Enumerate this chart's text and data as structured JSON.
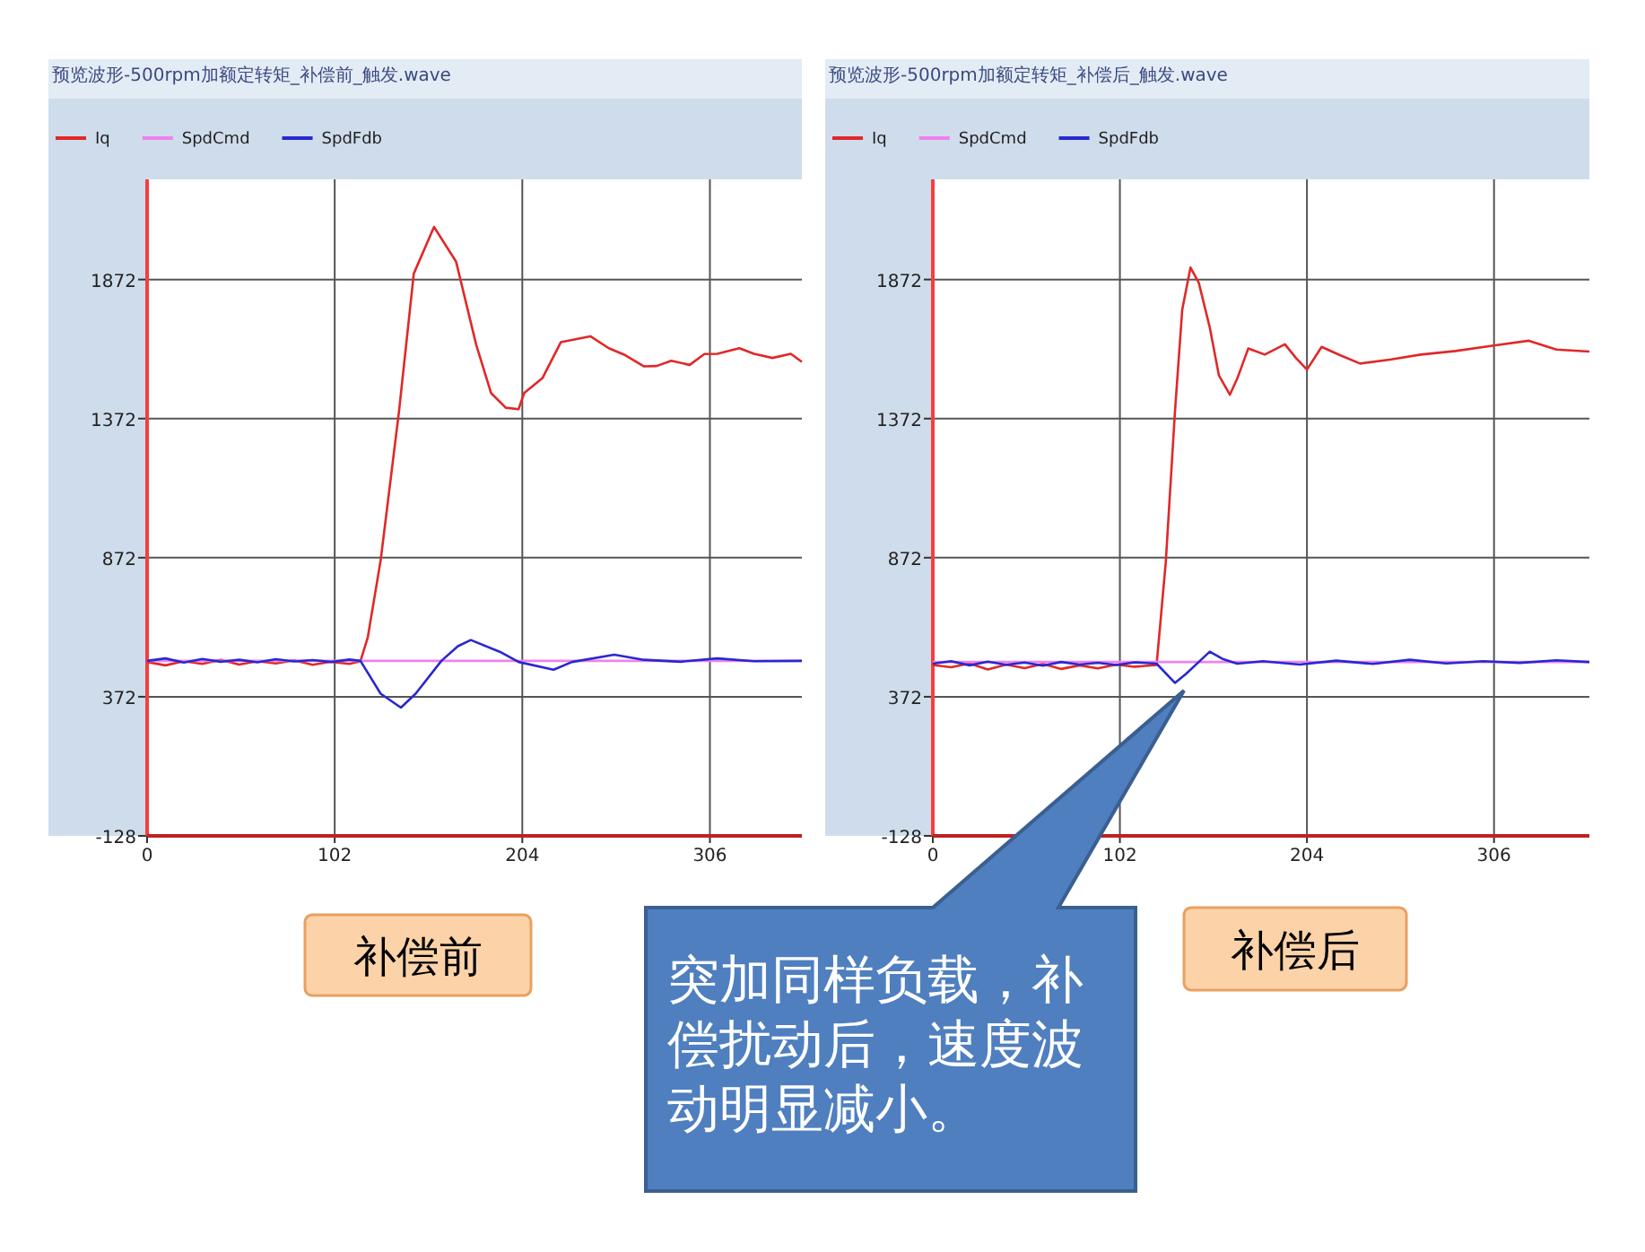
{
  "chart_data": [
    {
      "type": "line",
      "title": "预览波形-500rpm加额定转矩_补偿前_触发.wave",
      "xlim": [
        0,
        356
      ],
      "ylim": [
        -128,
        2232
      ],
      "xticks": [
        0,
        102,
        204,
        306
      ],
      "yticks": [
        -128,
        372,
        872,
        1372,
        1872
      ],
      "grid": true,
      "legend": "top left",
      "annotations": [
        "补偿前"
      ],
      "series": [
        {
          "name": "Iq",
          "color": "#e02828",
          "x": [
            0,
            10,
            20,
            30,
            40,
            50,
            60,
            70,
            80,
            90,
            100,
            110,
            116,
            120,
            127,
            137,
            145,
            156,
            168,
            179,
            187,
            195,
            202,
            205,
            215,
            225,
            241,
            251,
            260,
            270,
            277,
            285,
            295,
            303,
            310,
            322,
            330,
            340,
            350,
            356
          ],
          "values": [
            497,
            485,
            500,
            490,
            505,
            488,
            500,
            492,
            503,
            487,
            498,
            490,
            500,
            586,
            863,
            1400,
            1893,
            2061,
            1936,
            1636,
            1464,
            1411,
            1406,
            1464,
            1518,
            1647,
            1668,
            1625,
            1600,
            1560,
            1561,
            1580,
            1565,
            1604,
            1605,
            1625,
            1605,
            1590,
            1605,
            1576
          ]
        },
        {
          "name": "SpdCmd",
          "color": "#ee82ee",
          "x": [
            0,
            356
          ],
          "values": [
            501,
            501
          ]
        },
        {
          "name": "SpdFdb",
          "color": "#2828d0",
          "x": [
            0,
            10,
            20,
            30,
            40,
            50,
            60,
            70,
            80,
            90,
            100,
            110,
            116,
            127,
            138,
            146,
            160,
            169,
            176,
            192,
            202,
            221,
            231,
            254,
            270,
            290,
            310,
            330,
            356
          ],
          "values": [
            501,
            510,
            495,
            508,
            498,
            505,
            496,
            507,
            499,
            504,
            497,
            506,
            501,
            383,
            333,
            383,
            501,
            554,
            576,
            533,
            497,
            469,
            497,
            523,
            505,
            498,
            510,
            500,
            501
          ]
        }
      ]
    },
    {
      "type": "line",
      "title": "预览波形-500rpm加额定转矩_补偿后_触发.wave",
      "xlim": [
        0,
        358
      ],
      "ylim": [
        -128,
        2232
      ],
      "xticks": [
        0,
        102,
        204,
        306
      ],
      "yticks": [
        -128,
        372,
        872,
        1372,
        1872
      ],
      "grid": true,
      "legend": "top left",
      "annotations": [
        "补偿后",
        "突加同样负载，补偿扰动后，速度波动明显减小。"
      ],
      "series": [
        {
          "name": "Iq",
          "color": "#e02828",
          "x": [
            0,
            10,
            20,
            30,
            40,
            50,
            60,
            70,
            80,
            90,
            100,
            110,
            122,
            127,
            132,
            136,
            140.5,
            145,
            151,
            156,
            162,
            166,
            172,
            181,
            192,
            198,
            204,
            212,
            222,
            233,
            250,
            266,
            285,
            305,
            325,
            340,
            358
          ],
          "values": [
            486,
            478,
            492,
            470,
            488,
            475,
            490,
            472,
            485,
            474,
            488,
            480,
            486,
            854,
            1394,
            1764,
            1915,
            1861,
            1700,
            1527,
            1458,
            1516,
            1624,
            1602,
            1639,
            1590,
            1548,
            1630,
            1600,
            1570,
            1585,
            1602,
            1615,
            1634,
            1652,
            1620,
            1613
          ]
        },
        {
          "name": "SpdCmd",
          "color": "#ee82ee",
          "x": [
            0,
            358
          ],
          "values": [
            497,
            497
          ]
        },
        {
          "name": "SpdFdb",
          "color": "#2828d0",
          "x": [
            0,
            10,
            20,
            30,
            40,
            50,
            60,
            70,
            80,
            90,
            100,
            110,
            122,
            132,
            138,
            145,
            151,
            158,
            166,
            180,
            200,
            220,
            240,
            260,
            280,
            300,
            320,
            340,
            358
          ],
          "values": [
            491,
            500,
            485,
            498,
            487,
            495,
            484,
            497,
            488,
            494,
            486,
            496,
            491,
            422,
            454,
            497,
            534,
            508,
            491,
            500,
            488,
            502,
            490,
            505,
            492,
            500,
            494,
            503,
            497
          ]
        }
      ]
    }
  ]
}
